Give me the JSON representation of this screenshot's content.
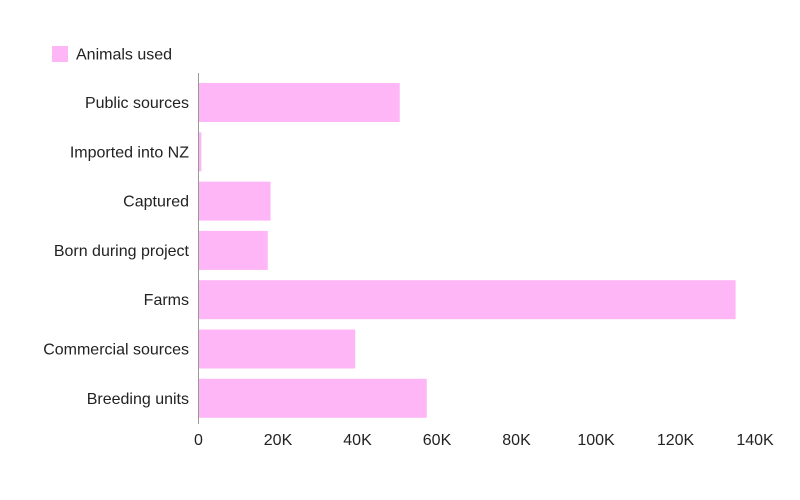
{
  "chart_data": {
    "type": "bar",
    "orientation": "horizontal",
    "categories": [
      "Public sources",
      "Imported into NZ",
      "Captured",
      "Born during project",
      "Farms",
      "Commercial sources",
      "Breeding units"
    ],
    "series": [
      {
        "name": "Animals used",
        "color": "#ffb6f6",
        "values": [
          50500,
          600,
          18000,
          17300,
          135000,
          39300,
          57300
        ]
      }
    ],
    "xlim": [
      0,
      140000
    ],
    "x_ticks": [
      0,
      20000,
      40000,
      60000,
      80000,
      100000,
      120000,
      140000
    ],
    "x_tick_labels": [
      "0",
      "20K",
      "40K",
      "60K",
      "80K",
      "100K",
      "120K",
      "140K"
    ],
    "title": "",
    "xlabel": "",
    "ylabel": "",
    "legend_position": "top-left",
    "grid": false
  }
}
